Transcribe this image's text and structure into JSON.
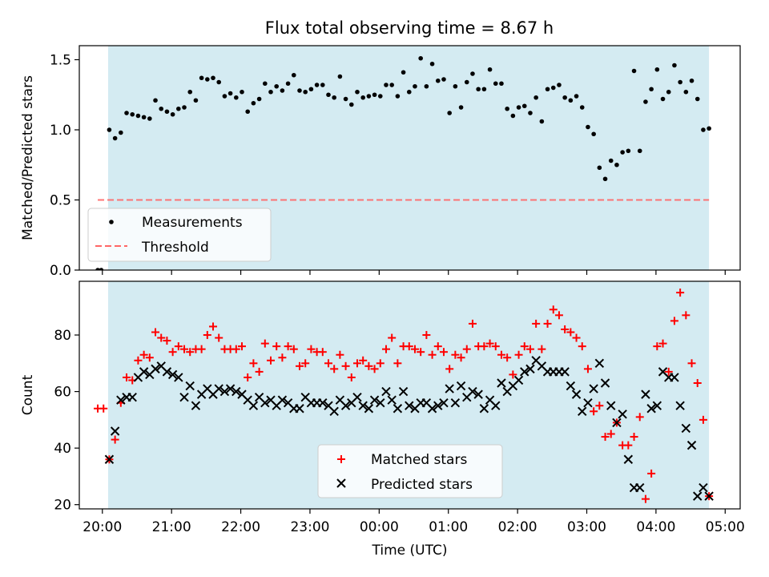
{
  "title": "Flux total observing time = 8.67 h",
  "colors": {
    "observing_span": "#add8e6",
    "measurement": "#000000",
    "threshold": "#ff6666",
    "matched": "#ff0000",
    "predicted": "#000000"
  },
  "chart_data": [
    {
      "type": "scatter",
      "panel": "top",
      "title": "Flux total observing time = 8.67 h",
      "xlabel": "",
      "ylabel": "Matched/Predicted stars",
      "xlim": [
        "19:40",
        "05:13"
      ],
      "ylim": [
        0.0,
        1.6
      ],
      "yticks": [
        "0.0",
        "0.5",
        "1.0",
        "1.5"
      ],
      "observing_span": [
        "20:05",
        "04:46"
      ],
      "legend_position": "lower-left",
      "legend": [
        {
          "key": "measurements",
          "label": "Measurements",
          "marker": "dot"
        },
        {
          "key": "threshold",
          "label": "Threshold",
          "marker": "dashed-line"
        }
      ],
      "threshold": {
        "value": 0.5,
        "x": [
          "19:56",
          "04:46"
        ]
      },
      "measurements": {
        "x": [
          "19:56",
          "19:59",
          "20:06",
          "20:11",
          "20:16",
          "20:21",
          "20:26",
          "20:31",
          "20:36",
          "20:41",
          "20:46",
          "20:51",
          "20:56",
          "21:01",
          "21:06",
          "21:11",
          "21:16",
          "21:21",
          "21:26",
          "21:31",
          "21:36",
          "21:41",
          "21:46",
          "21:51",
          "21:56",
          "22:01",
          "22:06",
          "22:11",
          "22:16",
          "22:21",
          "22:26",
          "22:31",
          "22:36",
          "22:41",
          "22:46",
          "22:51",
          "22:56",
          "23:01",
          "23:06",
          "23:11",
          "23:16",
          "23:21",
          "23:26",
          "23:31",
          "23:36",
          "23:41",
          "23:46",
          "23:51",
          "23:56",
          "00:01",
          "00:06",
          "00:11",
          "00:16",
          "00:21",
          "00:26",
          "00:31",
          "00:36",
          "00:41",
          "00:46",
          "00:51",
          "00:56",
          "01:01",
          "01:06",
          "01:11",
          "01:16",
          "01:21",
          "01:26",
          "01:31",
          "01:36",
          "01:41",
          "01:46",
          "01:51",
          "01:56",
          "02:01",
          "02:06",
          "02:11",
          "02:16",
          "02:21",
          "02:26",
          "02:31",
          "02:36",
          "02:41",
          "02:46",
          "02:51",
          "02:56",
          "03:01",
          "03:06",
          "03:11",
          "03:16",
          "03:21",
          "03:26",
          "03:31",
          "03:36",
          "03:41",
          "03:46",
          "03:51",
          "03:56",
          "04:01",
          "04:06",
          "04:11",
          "04:16",
          "04:21",
          "04:26",
          "04:31",
          "04:36",
          "04:41",
          "04:46"
        ],
        "y": [
          0.0,
          0.0,
          1.0,
          0.94,
          0.98,
          1.12,
          1.11,
          1.1,
          1.09,
          1.08,
          1.21,
          1.15,
          1.13,
          1.11,
          1.15,
          1.16,
          1.27,
          1.21,
          1.37,
          1.36,
          1.37,
          1.34,
          1.24,
          1.26,
          1.23,
          1.27,
          1.13,
          1.19,
          1.22,
          1.33,
          1.27,
          1.31,
          1.28,
          1.33,
          1.39,
          1.28,
          1.27,
          1.29,
          1.32,
          1.32,
          1.25,
          1.23,
          1.38,
          1.22,
          1.18,
          1.27,
          1.23,
          1.24,
          1.25,
          1.24,
          1.32,
          1.32,
          1.24,
          1.41,
          1.27,
          1.31,
          1.51,
          1.31,
          1.47,
          1.35,
          1.36,
          1.12,
          1.31,
          1.16,
          1.34,
          1.4,
          1.29,
          1.29,
          1.43,
          1.33,
          1.33,
          1.15,
          1.1,
          1.16,
          1.17,
          1.12,
          1.23,
          1.06,
          1.29,
          1.3,
          1.32,
          1.23,
          1.21,
          1.24,
          1.16,
          1.02,
          0.97,
          0.73,
          0.65,
          0.78,
          0.75,
          0.84,
          0.85,
          1.42,
          0.85,
          1.2,
          1.29,
          1.43,
          1.22,
          1.27,
          1.46,
          1.34,
          1.27,
          1.35,
          1.22,
          1.0,
          1.01
        ]
      }
    },
    {
      "type": "scatter",
      "panel": "bottom",
      "xlabel": "Time (UTC)",
      "ylabel": "Count",
      "xlim": [
        "19:40",
        "05:13"
      ],
      "ylim": [
        18.5,
        99
      ],
      "yticks": [
        "20",
        "40",
        "60",
        "80"
      ],
      "xticks": [
        "20:00",
        "21:00",
        "22:00",
        "23:00",
        "00:00",
        "01:00",
        "02:00",
        "03:00",
        "04:00",
        "05:00"
      ],
      "observing_span": [
        "20:05",
        "04:46"
      ],
      "legend_position": "lower-center",
      "series": [
        {
          "key": "matched",
          "name": "Matched stars",
          "marker": "plus",
          "x": [
            "19:56",
            "20:01",
            "20:06",
            "20:11",
            "20:16",
            "20:21",
            "20:26",
            "20:31",
            "20:36",
            "20:41",
            "20:46",
            "20:51",
            "20:56",
            "21:01",
            "21:06",
            "21:11",
            "21:16",
            "21:21",
            "21:26",
            "21:31",
            "21:36",
            "21:41",
            "21:46",
            "21:51",
            "21:56",
            "22:01",
            "22:06",
            "22:11",
            "22:16",
            "22:21",
            "22:26",
            "22:31",
            "22:36",
            "22:41",
            "22:46",
            "22:51",
            "22:56",
            "23:01",
            "23:06",
            "23:11",
            "23:16",
            "23:21",
            "23:26",
            "23:31",
            "23:36",
            "23:41",
            "23:46",
            "23:51",
            "23:56",
            "00:01",
            "00:06",
            "00:11",
            "00:16",
            "00:21",
            "00:26",
            "00:31",
            "00:36",
            "00:41",
            "00:46",
            "00:51",
            "00:56",
            "01:01",
            "01:06",
            "01:11",
            "01:16",
            "01:21",
            "01:26",
            "01:31",
            "01:36",
            "01:41",
            "01:46",
            "01:51",
            "01:56",
            "02:01",
            "02:06",
            "02:11",
            "02:16",
            "02:21",
            "02:26",
            "02:31",
            "02:36",
            "02:41",
            "02:46",
            "02:51",
            "02:56",
            "03:01",
            "03:06",
            "03:11",
            "03:16",
            "03:21",
            "03:26",
            "03:31",
            "03:36",
            "03:41",
            "03:46",
            "03:51",
            "03:56",
            "04:01",
            "04:06",
            "04:11",
            "04:16",
            "04:21",
            "04:26",
            "04:31",
            "04:36",
            "04:41",
            "04:46"
          ],
          "y": [
            54,
            54,
            36,
            43,
            56,
            65,
            64,
            71,
            73,
            72,
            81,
            79,
            78,
            74,
            76,
            75,
            74,
            75,
            75,
            80,
            83,
            79,
            75,
            75,
            75,
            76,
            65,
            70,
            67,
            77,
            71,
            76,
            72,
            76,
            75,
            69,
            70,
            75,
            74,
            74,
            70,
            68,
            73,
            69,
            65,
            70,
            71,
            69,
            68,
            70,
            75,
            79,
            70,
            76,
            76,
            75,
            74,
            80,
            73,
            76,
            74,
            68,
            73,
            72,
            75,
            84,
            76,
            76,
            77,
            76,
            73,
            72,
            66,
            73,
            76,
            75,
            84,
            75,
            84,
            89,
            87,
            82,
            81,
            79,
            76,
            68,
            53,
            55,
            44,
            45,
            49,
            41,
            41,
            44,
            51,
            22,
            31,
            76,
            77,
            67,
            85,
            95,
            87,
            70,
            63,
            50,
            23
          ]
        },
        {
          "key": "predicted",
          "name": "Predicted stars",
          "marker": "x",
          "x": [
            "20:06",
            "20:11",
            "20:16",
            "20:21",
            "20:26",
            "20:31",
            "20:36",
            "20:41",
            "20:46",
            "20:51",
            "20:56",
            "21:01",
            "21:06",
            "21:11",
            "21:16",
            "21:21",
            "21:26",
            "21:31",
            "21:36",
            "21:41",
            "21:46",
            "21:51",
            "21:56",
            "22:01",
            "22:06",
            "22:11",
            "22:16",
            "22:21",
            "22:26",
            "22:31",
            "22:36",
            "22:41",
            "22:46",
            "22:51",
            "22:56",
            "23:01",
            "23:06",
            "23:11",
            "23:16",
            "23:21",
            "23:26",
            "23:31",
            "23:36",
            "23:41",
            "23:46",
            "23:51",
            "23:56",
            "00:01",
            "00:06",
            "00:11",
            "00:16",
            "00:21",
            "00:26",
            "00:31",
            "00:36",
            "00:41",
            "00:46",
            "00:51",
            "00:56",
            "01:01",
            "01:06",
            "01:11",
            "01:16",
            "01:21",
            "01:26",
            "01:31",
            "01:36",
            "01:41",
            "01:46",
            "01:51",
            "01:56",
            "02:01",
            "02:06",
            "02:11",
            "02:16",
            "02:21",
            "02:26",
            "02:31",
            "02:36",
            "02:41",
            "02:46",
            "02:51",
            "02:56",
            "03:01",
            "03:06",
            "03:11",
            "03:16",
            "03:21",
            "03:26",
            "03:31",
            "03:36",
            "03:41",
            "03:46",
            "03:51",
            "03:56",
            "04:01",
            "04:06",
            "04:11",
            "04:16",
            "04:21",
            "04:26",
            "04:31",
            "04:36",
            "04:41",
            "04:46"
          ],
          "y": [
            36,
            46,
            57,
            58,
            58,
            65,
            67,
            66,
            68,
            69,
            67,
            66,
            65,
            58,
            62,
            55,
            59,
            61,
            59,
            61,
            60,
            61,
            60,
            59,
            57,
            55,
            58,
            56,
            57,
            55,
            57,
            56,
            54,
            54,
            58,
            56,
            56,
            56,
            55,
            53,
            57,
            55,
            56,
            58,
            55,
            54,
            57,
            56,
            60,
            57,
            54,
            60,
            55,
            54,
            56,
            56,
            54,
            55,
            56,
            61,
            56,
            62,
            58,
            60,
            59,
            54,
            57,
            55,
            63,
            60,
            62,
            64,
            67,
            68,
            71,
            69,
            67,
            67,
            67,
            67,
            62,
            59,
            53,
            56,
            61,
            70,
            63,
            55,
            49,
            52,
            36,
            26,
            26,
            59,
            54,
            55,
            67,
            65,
            65,
            55,
            47,
            41,
            23,
            26,
            23
          ]
        }
      ]
    }
  ]
}
